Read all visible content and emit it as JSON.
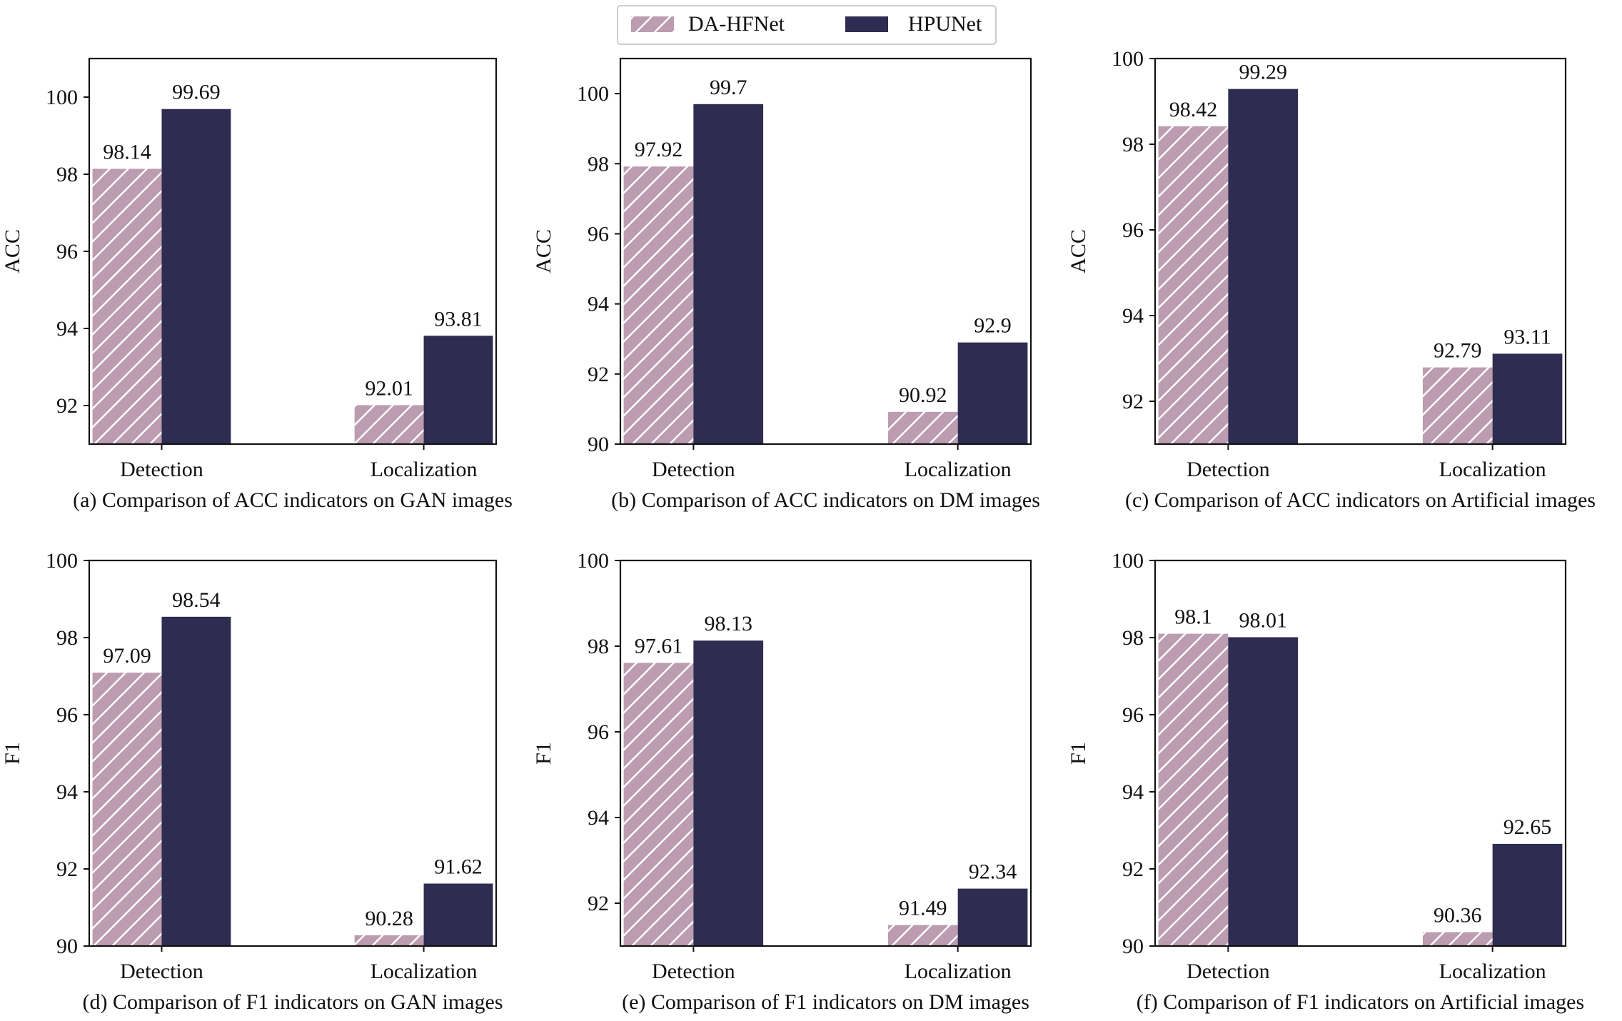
{
  "legend": {
    "position": "top-center",
    "items": [
      {
        "label": "DA-HFNet",
        "color": "#bc9cb0",
        "pattern": "hatch"
      },
      {
        "label": "HPUNet",
        "color": "#2e2c50",
        "pattern": "solid"
      }
    ]
  },
  "chart_data": [
    {
      "type": "bar",
      "caption": "(a) Comparison of ACC indicators on GAN images",
      "ylabel": "ACC",
      "categories": [
        "Detection",
        "Localization"
      ],
      "ylim": [
        91,
        101
      ],
      "yticks": [
        92,
        94,
        96,
        98,
        100
      ],
      "series": [
        {
          "name": "DA-HFNet",
          "values": [
            98.14,
            92.01
          ],
          "labels": [
            "98.14",
            "92.01"
          ]
        },
        {
          "name": "HPUNet",
          "values": [
            99.69,
            93.81
          ],
          "labels": [
            "99.69",
            "93.81"
          ]
        }
      ]
    },
    {
      "type": "bar",
      "caption": "(b) Comparison of ACC indicators on DM images",
      "ylabel": "ACC",
      "categories": [
        "Detection",
        "Localization"
      ],
      "ylim": [
        90,
        101
      ],
      "yticks": [
        90,
        92,
        94,
        96,
        98,
        100
      ],
      "series": [
        {
          "name": "DA-HFNet",
          "values": [
            97.92,
            90.92
          ],
          "labels": [
            "97.92",
            "90.92"
          ]
        },
        {
          "name": "HPUNet",
          "values": [
            99.7,
            92.9
          ],
          "labels": [
            "99.7",
            "92.9"
          ]
        }
      ]
    },
    {
      "type": "bar",
      "caption": "(c) Comparison of ACC indicators on Artificial images",
      "ylabel": "ACC",
      "categories": [
        "Detection",
        "Localization"
      ],
      "ylim": [
        91,
        100
      ],
      "yticks": [
        92,
        94,
        96,
        98,
        100
      ],
      "series": [
        {
          "name": "DA-HFNet",
          "values": [
            98.42,
            92.79
          ],
          "labels": [
            "98.42",
            "92.79"
          ]
        },
        {
          "name": "HPUNet",
          "values": [
            99.29,
            93.11
          ],
          "labels": [
            "99.29",
            "93.11"
          ]
        }
      ]
    },
    {
      "type": "bar",
      "caption": "(d) Comparison of F1 indicators on GAN images",
      "ylabel": "F1",
      "categories": [
        "Detection",
        "Localization"
      ],
      "ylim": [
        90,
        100
      ],
      "yticks": [
        90,
        92,
        94,
        96,
        98,
        100
      ],
      "series": [
        {
          "name": "DA-HFNet",
          "values": [
            97.09,
            90.28
          ],
          "labels": [
            "97.09",
            "90.28"
          ]
        },
        {
          "name": "HPUNet",
          "values": [
            98.54,
            91.62
          ],
          "labels": [
            "98.54",
            "91.62"
          ]
        }
      ]
    },
    {
      "type": "bar",
      "caption": "(e) Comparison of F1 indicators on DM images",
      "ylabel": "F1",
      "categories": [
        "Detection",
        "Localization"
      ],
      "ylim": [
        91,
        100
      ],
      "yticks": [
        92,
        94,
        96,
        98,
        100
      ],
      "series": [
        {
          "name": "DA-HFNet",
          "values": [
            97.61,
            91.49
          ],
          "labels": [
            "97.61",
            "91.49"
          ]
        },
        {
          "name": "HPUNet",
          "values": [
            98.13,
            92.34
          ],
          "labels": [
            "98.13",
            "92.34"
          ]
        }
      ]
    },
    {
      "type": "bar",
      "caption": "(f) Comparison of F1 indicators on Artificial images",
      "ylabel": "F1",
      "categories": [
        "Detection",
        "Localization"
      ],
      "ylim": [
        90,
        100
      ],
      "yticks": [
        90,
        92,
        94,
        96,
        98,
        100
      ],
      "series": [
        {
          "name": "DA-HFNet",
          "values": [
            98.1,
            90.36
          ],
          "labels": [
            "98.1",
            "90.36"
          ]
        },
        {
          "name": "HPUNet",
          "values": [
            98.01,
            92.65
          ],
          "labels": [
            "98.01",
            "92.65"
          ]
        }
      ]
    }
  ]
}
